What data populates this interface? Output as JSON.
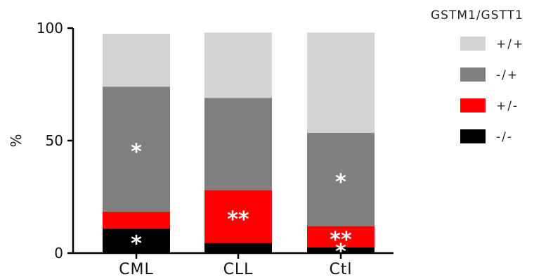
{
  "chart_data": {
    "type": "bar",
    "stacked": true,
    "ylabel": "%",
    "ylim": [
      0,
      100
    ],
    "yticks": [
      "0",
      "50",
      "100"
    ],
    "categories": [
      "CML",
      "CLL",
      "Ctl"
    ],
    "legend_title": "GSTM1/GSTT1",
    "legend_position": "right",
    "series": [
      {
        "name": "-/-",
        "color": "#000000",
        "values": [
          11,
          4.5,
          2.5
        ],
        "annotations": [
          "*",
          "",
          "*"
        ]
      },
      {
        "name": "+/-",
        "color": "#ff0000",
        "values": [
          7.5,
          23.5,
          9.5
        ],
        "annotations": [
          "",
          "**",
          "**"
        ]
      },
      {
        "name": "-/+",
        "color": "#808080",
        "values": [
          55.5,
          41,
          41.5
        ],
        "annotations": [
          "*",
          "",
          "*"
        ]
      },
      {
        "name": "+/+",
        "color": "#d3d3d3",
        "values": [
          23.5,
          29,
          44.5
        ],
        "annotations": [
          "",
          "",
          ""
        ]
      }
    ],
    "legend_order": [
      "+/+",
      "-/+",
      "+/-",
      "-/-"
    ],
    "grid": false
  }
}
